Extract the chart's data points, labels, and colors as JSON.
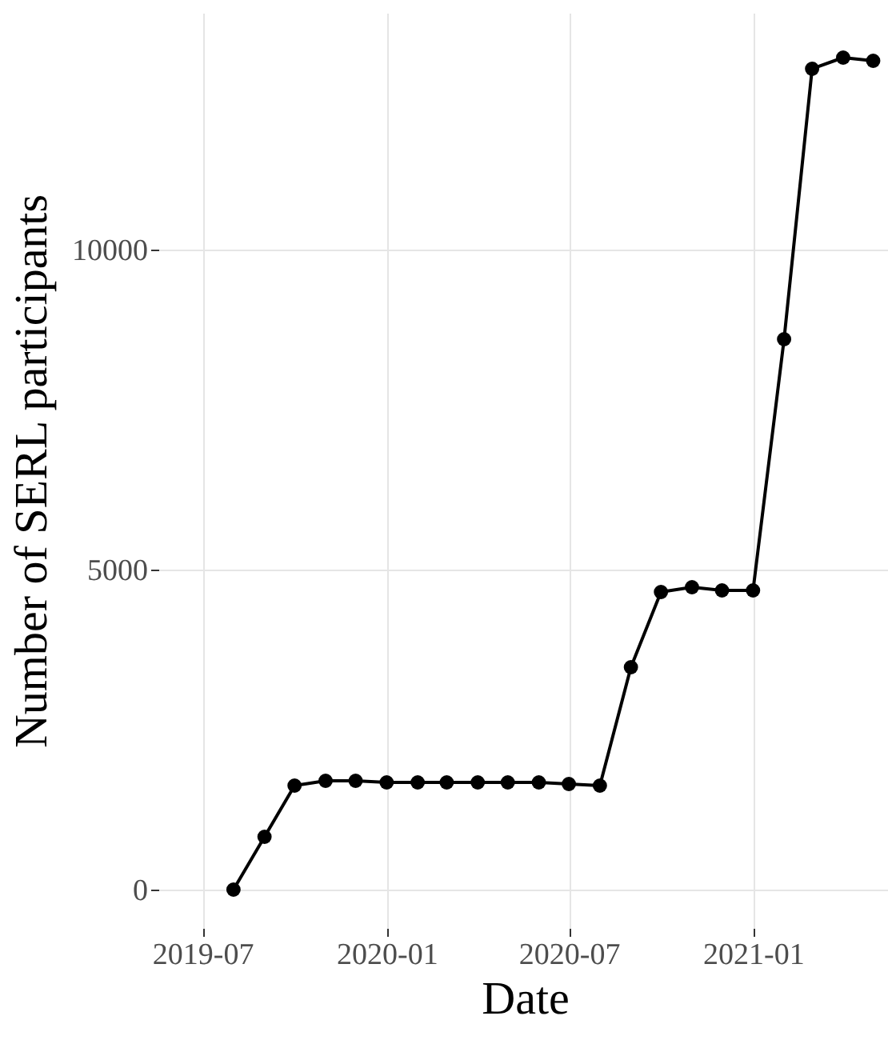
{
  "chart_data": {
    "type": "line",
    "xlabel": "Date",
    "ylabel": "Number of SERL participants",
    "x": [
      "2019-08",
      "2019-09",
      "2019-10",
      "2019-11",
      "2019-12",
      "2020-01",
      "2020-02",
      "2020-03",
      "2020-04",
      "2020-05",
      "2020-06",
      "2020-07",
      "2020-08",
      "2020-09",
      "2020-10",
      "2020-11",
      "2020-12",
      "2021-01",
      "2021-02",
      "2021-03",
      "2021-04",
      "2021-05"
    ],
    "series": [
      {
        "color": "#000000",
        "values": [
          0,
          825,
          1625,
          1700,
          1700,
          1675,
          1675,
          1675,
          1675,
          1675,
          1675,
          1650,
          1625,
          3475,
          4650,
          4725,
          4675,
          4675,
          8600,
          12825,
          13000,
          12950
        ]
      }
    ],
    "xlim": [
      "2019-05-18",
      "2021-05-19"
    ],
    "xticks": [
      "2019-07",
      "2020-01",
      "2020-07",
      "2021-01"
    ],
    "ylim": [
      -600,
      13700
    ],
    "yticks": [
      0,
      5000,
      10000
    ],
    "grid": true,
    "marker": "circle",
    "line_style": "solid",
    "legend": false
  }
}
